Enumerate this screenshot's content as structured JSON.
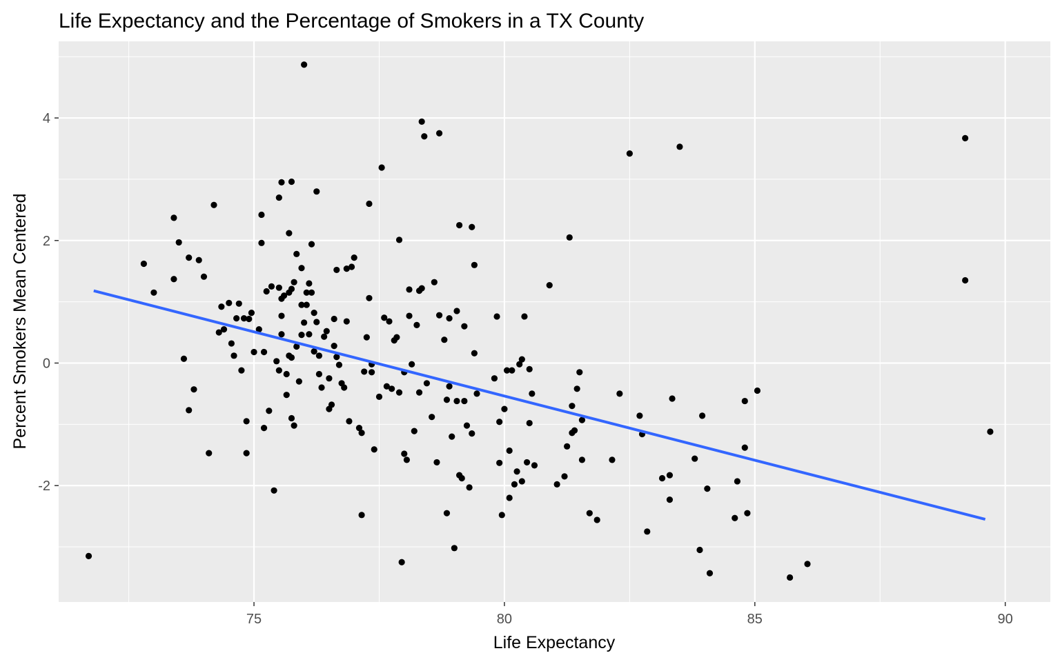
{
  "chart_data": {
    "type": "scatter",
    "title": "Life Expectancy and the Percentage of Smokers in a TX County",
    "xlabel": "Life Expectancy",
    "ylabel": "Percent Smokers Mean Centered",
    "xlim": [
      71.1,
      90.9
    ],
    "ylim": [
      -3.9,
      5.25
    ],
    "x_ticks": [
      75,
      80,
      85,
      90
    ],
    "y_ticks": [
      -2,
      0,
      2,
      4
    ],
    "grid": true,
    "colors": {
      "panel": "#ebebeb",
      "grid": "#ffffff",
      "points": "#000000",
      "trend": "#3366ff"
    },
    "points": [
      [
        71.7,
        -3.15
      ],
      [
        72.8,
        1.62
      ],
      [
        73.0,
        1.15
      ],
      [
        73.4,
        2.37
      ],
      [
        73.4,
        1.37
      ],
      [
        73.5,
        1.97
      ],
      [
        73.6,
        0.07
      ],
      [
        73.7,
        1.72
      ],
      [
        73.7,
        -0.77
      ],
      [
        73.8,
        -0.43
      ],
      [
        73.9,
        1.68
      ],
      [
        74.0,
        1.41
      ],
      [
        74.1,
        -1.47
      ],
      [
        74.2,
        2.58
      ],
      [
        74.3,
        0.5
      ],
      [
        74.35,
        0.92
      ],
      [
        74.4,
        0.55
      ],
      [
        74.5,
        0.98
      ],
      [
        74.55,
        0.32
      ],
      [
        74.6,
        0.12
      ],
      [
        74.65,
        0.73
      ],
      [
        74.7,
        0.97
      ],
      [
        74.75,
        -0.12
      ],
      [
        74.8,
        0.73
      ],
      [
        74.85,
        -0.95
      ],
      [
        74.85,
        -1.47
      ],
      [
        74.9,
        0.72
      ],
      [
        74.95,
        0.82
      ],
      [
        75.0,
        0.18
      ],
      [
        75.1,
        0.55
      ],
      [
        75.15,
        2.42
      ],
      [
        75.15,
        1.96
      ],
      [
        75.2,
        0.18
      ],
      [
        75.2,
        -1.06
      ],
      [
        75.25,
        1.17
      ],
      [
        75.3,
        -0.78
      ],
      [
        75.35,
        1.25
      ],
      [
        75.4,
        -2.08
      ],
      [
        75.45,
        0.03
      ],
      [
        75.5,
        2.7
      ],
      [
        75.5,
        1.23
      ],
      [
        75.5,
        -0.12
      ],
      [
        75.55,
        2.95
      ],
      [
        75.55,
        1.05
      ],
      [
        75.55,
        0.77
      ],
      [
        75.55,
        0.47
      ],
      [
        75.6,
        1.1
      ],
      [
        75.65,
        -0.52
      ],
      [
        75.65,
        -0.18
      ],
      [
        75.7,
        2.12
      ],
      [
        75.7,
        1.15
      ],
      [
        75.7,
        0.12
      ],
      [
        75.75,
        2.96
      ],
      [
        75.75,
        1.21
      ],
      [
        75.75,
        0.09
      ],
      [
        75.75,
        -0.9
      ],
      [
        75.8,
        1.32
      ],
      [
        75.8,
        -1.02
      ],
      [
        75.85,
        1.78
      ],
      [
        75.85,
        0.27
      ],
      [
        75.9,
        -0.3
      ],
      [
        75.95,
        1.55
      ],
      [
        75.95,
        0.95
      ],
      [
        75.95,
        0.46
      ],
      [
        76.0,
        4.87
      ],
      [
        76.0,
        0.66
      ],
      [
        76.05,
        1.15
      ],
      [
        76.05,
        0.95
      ],
      [
        76.1,
        1.3
      ],
      [
        76.1,
        0.47
      ],
      [
        76.15,
        1.94
      ],
      [
        76.15,
        1.15
      ],
      [
        76.2,
        0.82
      ],
      [
        76.2,
        0.19
      ],
      [
        76.25,
        2.8
      ],
      [
        76.25,
        0.67
      ],
      [
        76.3,
        -0.18
      ],
      [
        76.3,
        0.12
      ],
      [
        76.35,
        -0.4
      ],
      [
        76.4,
        0.43
      ],
      [
        76.45,
        0.52
      ],
      [
        76.5,
        -0.75
      ],
      [
        76.5,
        -0.25
      ],
      [
        76.55,
        -0.68
      ],
      [
        76.6,
        0.72
      ],
      [
        76.6,
        0.28
      ],
      [
        76.65,
        0.1
      ],
      [
        76.65,
        1.52
      ],
      [
        76.7,
        -0.03
      ],
      [
        76.75,
        -0.33
      ],
      [
        76.8,
        -0.4
      ],
      [
        76.85,
        1.54
      ],
      [
        76.85,
        0.68
      ],
      [
        76.9,
        -0.95
      ],
      [
        76.95,
        1.57
      ],
      [
        77.0,
        1.72
      ],
      [
        77.1,
        -1.06
      ],
      [
        77.15,
        -1.14
      ],
      [
        77.15,
        -2.48
      ],
      [
        77.2,
        -0.14
      ],
      [
        77.25,
        0.42
      ],
      [
        77.3,
        2.6
      ],
      [
        77.3,
        1.06
      ],
      [
        77.35,
        -0.02
      ],
      [
        77.35,
        -0.15
      ],
      [
        77.4,
        -1.41
      ],
      [
        77.5,
        -0.55
      ],
      [
        77.55,
        3.19
      ],
      [
        77.6,
        0.74
      ],
      [
        77.65,
        -0.38
      ],
      [
        77.7,
        0.68
      ],
      [
        77.75,
        -0.42
      ],
      [
        77.8,
        0.37
      ],
      [
        77.85,
        0.42
      ],
      [
        77.9,
        2.01
      ],
      [
        77.9,
        -0.48
      ],
      [
        77.95,
        -3.25
      ],
      [
        78.0,
        -1.48
      ],
      [
        78.0,
        -0.15
      ],
      [
        78.05,
        -1.58
      ],
      [
        78.1,
        1.2
      ],
      [
        78.1,
        0.77
      ],
      [
        78.15,
        -0.02
      ],
      [
        78.2,
        -1.11
      ],
      [
        78.25,
        0.62
      ],
      [
        78.3,
        1.18
      ],
      [
        78.3,
        -0.48
      ],
      [
        78.35,
        3.94
      ],
      [
        78.35,
        1.22
      ],
      [
        78.4,
        3.7
      ],
      [
        78.45,
        -0.33
      ],
      [
        78.55,
        -0.88
      ],
      [
        78.6,
        1.32
      ],
      [
        78.65,
        -1.62
      ],
      [
        78.7,
        3.75
      ],
      [
        78.7,
        0.78
      ],
      [
        78.8,
        0.38
      ],
      [
        78.85,
        -0.6
      ],
      [
        78.85,
        -2.45
      ],
      [
        78.9,
        0.73
      ],
      [
        78.9,
        -0.38
      ],
      [
        78.95,
        -1.2
      ],
      [
        79.0,
        -3.02
      ],
      [
        79.05,
        0.85
      ],
      [
        79.05,
        -0.62
      ],
      [
        79.1,
        2.25
      ],
      [
        79.1,
        -1.83
      ],
      [
        79.15,
        -1.88
      ],
      [
        79.2,
        0.6
      ],
      [
        79.2,
        -0.62
      ],
      [
        79.25,
        -1.02
      ],
      [
        79.3,
        -2.03
      ],
      [
        79.35,
        2.22
      ],
      [
        79.35,
        -1.15
      ],
      [
        79.4,
        1.6
      ],
      [
        79.4,
        0.16
      ],
      [
        79.45,
        -0.5
      ],
      [
        79.8,
        -0.25
      ],
      [
        79.85,
        0.76
      ],
      [
        79.9,
        -0.96
      ],
      [
        79.9,
        -1.63
      ],
      [
        79.95,
        -2.48
      ],
      [
        80.0,
        -0.75
      ],
      [
        80.05,
        -0.12
      ],
      [
        80.1,
        -1.43
      ],
      [
        80.1,
        -2.2
      ],
      [
        80.15,
        -0.12
      ],
      [
        80.2,
        -1.98
      ],
      [
        80.25,
        -1.77
      ],
      [
        80.3,
        -0.02
      ],
      [
        80.35,
        0.06
      ],
      [
        80.35,
        -1.93
      ],
      [
        80.4,
        0.76
      ],
      [
        80.45,
        -1.62
      ],
      [
        80.5,
        -0.1
      ],
      [
        80.5,
        -0.98
      ],
      [
        80.55,
        -0.5
      ],
      [
        80.6,
        -1.67
      ],
      [
        80.9,
        1.27
      ],
      [
        81.05,
        -1.98
      ],
      [
        81.2,
        -1.85
      ],
      [
        81.25,
        -1.36
      ],
      [
        81.3,
        2.05
      ],
      [
        81.35,
        -1.14
      ],
      [
        81.35,
        -0.7
      ],
      [
        81.4,
        -1.1
      ],
      [
        81.45,
        -0.42
      ],
      [
        81.5,
        -0.15
      ],
      [
        81.55,
        -0.93
      ],
      [
        81.55,
        -1.58
      ],
      [
        81.7,
        -2.45
      ],
      [
        81.85,
        -2.56
      ],
      [
        82.15,
        -1.58
      ],
      [
        82.3,
        -0.5
      ],
      [
        82.5,
        3.42
      ],
      [
        82.7,
        -0.86
      ],
      [
        82.75,
        -1.16
      ],
      [
        82.85,
        -2.75
      ],
      [
        83.15,
        -1.88
      ],
      [
        83.3,
        -1.83
      ],
      [
        83.3,
        -2.23
      ],
      [
        83.35,
        -0.58
      ],
      [
        83.5,
        3.53
      ],
      [
        83.8,
        -1.56
      ],
      [
        83.9,
        -3.05
      ],
      [
        83.95,
        -0.86
      ],
      [
        84.05,
        -2.05
      ],
      [
        84.1,
        -3.43
      ],
      [
        84.6,
        -2.53
      ],
      [
        84.65,
        -1.93
      ],
      [
        84.8,
        -0.62
      ],
      [
        84.8,
        -1.38
      ],
      [
        84.85,
        -2.45
      ],
      [
        85.05,
        -0.45
      ],
      [
        85.7,
        -3.5
      ],
      [
        86.05,
        -3.28
      ],
      [
        89.2,
        3.67
      ],
      [
        89.2,
        1.35
      ],
      [
        89.7,
        -1.12
      ]
    ],
    "trend_line": {
      "x": [
        71.8,
        89.6
      ],
      "y": [
        1.18,
        -2.55
      ]
    }
  }
}
